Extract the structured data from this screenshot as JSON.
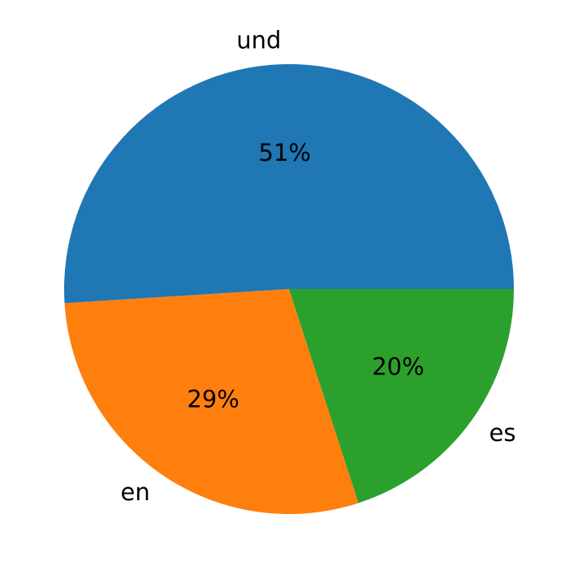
{
  "chart_data": {
    "type": "pie",
    "categories": [
      "und",
      "en",
      "es"
    ],
    "values": [
      51,
      29,
      20
    ],
    "value_labels": [
      "51%",
      "29%",
      "20%"
    ],
    "colors": [
      "#1f77b4",
      "#ff7f0e",
      "#2ca02c"
    ]
  }
}
